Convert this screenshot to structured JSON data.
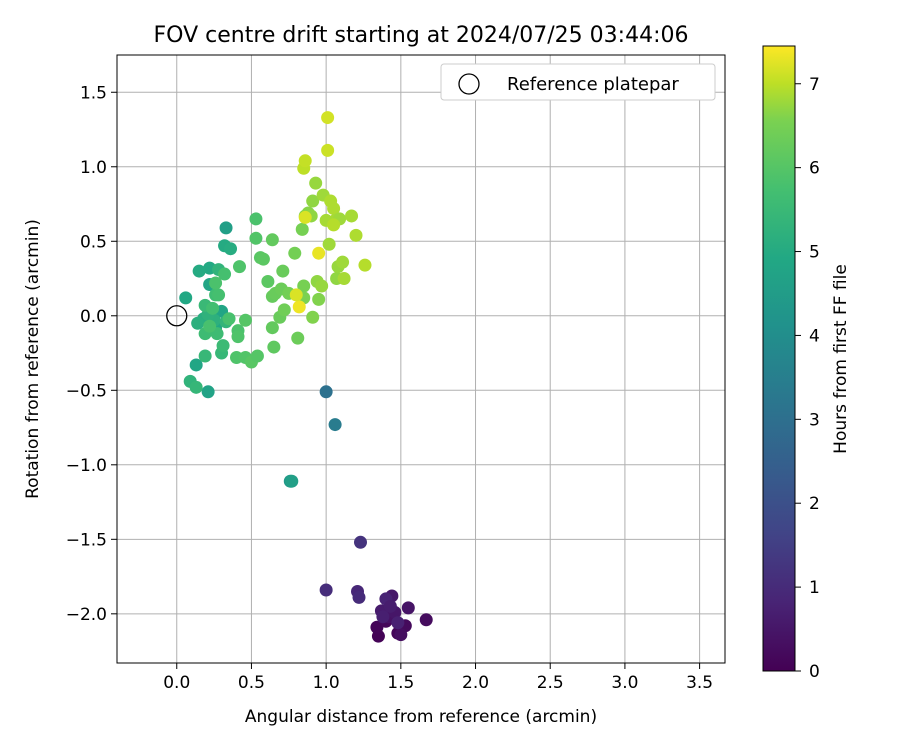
{
  "chart_data": {
    "type": "scatter",
    "title": "FOV centre drift starting at 2024/07/25 03:44:06",
    "xlabel": "Angular distance from reference (arcmin)",
    "ylabel": "Rotation from reference (arcmin)",
    "xlim": [
      -0.4,
      3.67
    ],
    "ylim": [
      -2.33,
      1.75
    ],
    "xticks": [
      0.0,
      0.5,
      1.0,
      1.5,
      2.0,
      2.5,
      3.0,
      3.5
    ],
    "xtick_labels": [
      "0.0",
      "0.5",
      "1.0",
      "1.5",
      "2.0",
      "2.5",
      "3.0",
      "3.5"
    ],
    "yticks": [
      1.5,
      1.0,
      0.5,
      0.0,
      -0.5,
      -1.0,
      -1.5,
      -2.0
    ],
    "ytick_labels": [
      "1.5",
      "1.0",
      "0.5",
      "0.0",
      "−0.5",
      "−1.0",
      "−1.5",
      "−2.0"
    ],
    "grid": true,
    "legend": {
      "position": "top-right",
      "label": "Reference platepar",
      "marker": "open-circle"
    },
    "reference_point": {
      "x": 0.0,
      "y": 0.0
    },
    "colorbar": {
      "label": "Hours from first FF file",
      "range": [
        0,
        7.45
      ],
      "ticks": [
        0,
        1,
        2,
        3,
        4,
        5,
        6,
        7
      ],
      "tick_labels": [
        "0",
        "1",
        "2",
        "3",
        "4",
        "5",
        "6",
        "7"
      ],
      "colormap": "viridis"
    },
    "points": [
      {
        "x": 1.35,
        "y": -2.15,
        "h": 0.05
      },
      {
        "x": 1.48,
        "y": -2.13,
        "h": 0.1
      },
      {
        "x": 1.34,
        "y": -2.09,
        "h": 0.1
      },
      {
        "x": 1.4,
        "y": -2.05,
        "h": 0.15
      },
      {
        "x": 1.53,
        "y": -2.08,
        "h": 0.2
      },
      {
        "x": 1.67,
        "y": -2.04,
        "h": 0.25
      },
      {
        "x": 1.5,
        "y": -2.14,
        "h": 0.3
      },
      {
        "x": 1.42,
        "y": -2.02,
        "h": 0.4
      },
      {
        "x": 1.55,
        "y": -1.96,
        "h": 0.45
      },
      {
        "x": 1.46,
        "y": -1.99,
        "h": 0.5
      },
      {
        "x": 1.44,
        "y": -1.88,
        "h": 0.55
      },
      {
        "x": 1.37,
        "y": -1.98,
        "h": 0.6
      },
      {
        "x": 1.38,
        "y": -2.02,
        "h": 0.7
      },
      {
        "x": 1.48,
        "y": -2.06,
        "h": 0.75
      },
      {
        "x": 1.4,
        "y": -1.9,
        "h": 0.8
      },
      {
        "x": 1.21,
        "y": -1.85,
        "h": 0.9
      },
      {
        "x": 1.22,
        "y": -1.89,
        "h": 1.0
      },
      {
        "x": 1.0,
        "y": -1.84,
        "h": 1.05
      },
      {
        "x": 1.23,
        "y": -1.52,
        "h": 1.2
      },
      {
        "x": 1.43,
        "y": -1.95,
        "h": 0.65
      },
      {
        "x": 1.0,
        "y": -0.51,
        "h": 3.05
      },
      {
        "x": 1.06,
        "y": -0.73,
        "h": 3.4
      },
      {
        "x": 0.76,
        "y": -1.11,
        "h": 4.4
      },
      {
        "x": 0.77,
        "y": -1.11,
        "h": 4.6
      },
      {
        "x": 0.21,
        "y": -0.51,
        "h": 4.75
      },
      {
        "x": 0.33,
        "y": 0.59,
        "h": 4.6
      },
      {
        "x": 0.22,
        "y": 0.21,
        "h": 4.8
      },
      {
        "x": 0.3,
        "y": 0.03,
        "h": 4.8
      },
      {
        "x": 0.13,
        "y": -0.33,
        "h": 4.85
      },
      {
        "x": 0.26,
        "y": -0.08,
        "h": 4.9
      },
      {
        "x": 0.22,
        "y": 0.32,
        "h": 4.95
      },
      {
        "x": 0.15,
        "y": 0.3,
        "h": 5.0
      },
      {
        "x": 0.06,
        "y": 0.12,
        "h": 4.9
      },
      {
        "x": 0.32,
        "y": 0.47,
        "h": 5.0
      },
      {
        "x": 0.36,
        "y": 0.45,
        "h": 5.05
      },
      {
        "x": 0.18,
        "y": -0.02,
        "h": 5.1
      },
      {
        "x": 0.14,
        "y": -0.05,
        "h": 5.15
      },
      {
        "x": 0.25,
        "y": -0.03,
        "h": 5.2
      },
      {
        "x": 0.21,
        "y": 0.01,
        "h": 5.25
      },
      {
        "x": 0.28,
        "y": 0.31,
        "h": 5.3
      },
      {
        "x": 0.33,
        "y": -0.04,
        "h": 5.35
      },
      {
        "x": 0.09,
        "y": -0.44,
        "h": 5.3
      },
      {
        "x": 0.13,
        "y": -0.48,
        "h": 5.4
      },
      {
        "x": 0.19,
        "y": -0.27,
        "h": 5.45
      },
      {
        "x": 0.3,
        "y": -0.25,
        "h": 5.45
      },
      {
        "x": 0.19,
        "y": 0.07,
        "h": 5.5
      },
      {
        "x": 0.31,
        "y": -0.2,
        "h": 5.55
      },
      {
        "x": 0.27,
        "y": -0.12,
        "h": 5.6
      },
      {
        "x": 0.19,
        "y": -0.12,
        "h": 5.6
      },
      {
        "x": 0.26,
        "y": 0.14,
        "h": 5.65
      },
      {
        "x": 0.28,
        "y": 0.14,
        "h": 5.75
      },
      {
        "x": 0.24,
        "y": 0.05,
        "h": 5.7
      },
      {
        "x": 0.32,
        "y": 0.28,
        "h": 5.75
      },
      {
        "x": 0.22,
        "y": -0.07,
        "h": 5.8
      },
      {
        "x": 0.26,
        "y": 0.22,
        "h": 5.85
      },
      {
        "x": 0.35,
        "y": -0.02,
        "h": 5.8
      },
      {
        "x": 0.41,
        "y": -0.1,
        "h": 5.85
      },
      {
        "x": 0.4,
        "y": -0.28,
        "h": 5.9
      },
      {
        "x": 0.46,
        "y": -0.28,
        "h": 5.95
      },
      {
        "x": 0.41,
        "y": -0.14,
        "h": 5.9
      },
      {
        "x": 0.46,
        "y": -0.03,
        "h": 6.0
      },
      {
        "x": 0.5,
        "y": -0.31,
        "h": 6.05
      },
      {
        "x": 0.54,
        "y": -0.27,
        "h": 6.0
      },
      {
        "x": 0.42,
        "y": 0.33,
        "h": 5.9
      },
      {
        "x": 0.53,
        "y": 0.65,
        "h": 5.85
      },
      {
        "x": 0.53,
        "y": 0.52,
        "h": 5.95
      },
      {
        "x": 0.56,
        "y": 0.39,
        "h": 6.05
      },
      {
        "x": 0.58,
        "y": 0.38,
        "h": 6.1
      },
      {
        "x": 0.61,
        "y": 0.23,
        "h": 6.1
      },
      {
        "x": 0.64,
        "y": 0.51,
        "h": 6.2
      },
      {
        "x": 0.64,
        "y": -0.08,
        "h": 6.2
      },
      {
        "x": 0.65,
        "y": -0.21,
        "h": 6.15
      },
      {
        "x": 0.64,
        "y": 0.13,
        "h": 6.25
      },
      {
        "x": 0.66,
        "y": 0.15,
        "h": 6.3
      },
      {
        "x": 0.69,
        "y": -0.01,
        "h": 6.3
      },
      {
        "x": 0.7,
        "y": 0.18,
        "h": 6.35
      },
      {
        "x": 0.71,
        "y": 0.3,
        "h": 6.3
      },
      {
        "x": 0.72,
        "y": 0.04,
        "h": 6.4
      },
      {
        "x": 0.75,
        "y": 0.15,
        "h": 6.45
      },
      {
        "x": 0.79,
        "y": 0.42,
        "h": 6.45
      },
      {
        "x": 0.81,
        "y": -0.15,
        "h": 6.35
      },
      {
        "x": 0.84,
        "y": 0.58,
        "h": 6.5
      },
      {
        "x": 0.85,
        "y": 0.12,
        "h": 6.55
      },
      {
        "x": 0.85,
        "y": 0.2,
        "h": 6.5
      },
      {
        "x": 0.86,
        "y": 0.67,
        "h": 6.6
      },
      {
        "x": 0.88,
        "y": 0.69,
        "h": 6.65
      },
      {
        "x": 0.9,
        "y": 0.67,
        "h": 6.7
      },
      {
        "x": 0.91,
        "y": -0.01,
        "h": 6.6
      },
      {
        "x": 0.91,
        "y": 0.77,
        "h": 6.7
      },
      {
        "x": 0.93,
        "y": 0.89,
        "h": 6.75
      },
      {
        "x": 0.94,
        "y": 0.23,
        "h": 6.7
      },
      {
        "x": 0.95,
        "y": 0.11,
        "h": 6.6
      },
      {
        "x": 0.97,
        "y": 0.2,
        "h": 6.75
      },
      {
        "x": 0.98,
        "y": 0.81,
        "h": 6.8
      },
      {
        "x": 1.0,
        "y": 0.64,
        "h": 6.85
      },
      {
        "x": 1.02,
        "y": 0.48,
        "h": 6.8
      },
      {
        "x": 1.03,
        "y": 0.77,
        "h": 6.9
      },
      {
        "x": 1.05,
        "y": 0.72,
        "h": 6.9
      },
      {
        "x": 1.06,
        "y": 0.64,
        "h": 6.85
      },
      {
        "x": 1.07,
        "y": 0.25,
        "h": 6.7
      },
      {
        "x": 1.08,
        "y": 0.33,
        "h": 6.75
      },
      {
        "x": 1.09,
        "y": 0.65,
        "h": 6.8
      },
      {
        "x": 1.11,
        "y": 0.36,
        "h": 6.8
      },
      {
        "x": 1.12,
        "y": 0.25,
        "h": 6.85
      },
      {
        "x": 1.17,
        "y": 0.67,
        "h": 6.85
      },
      {
        "x": 1.2,
        "y": 0.54,
        "h": 6.9
      },
      {
        "x": 1.26,
        "y": 0.34,
        "h": 6.95
      },
      {
        "x": 1.05,
        "y": 0.61,
        "h": 6.95
      },
      {
        "x": 0.85,
        "y": 0.99,
        "h": 7.0
      },
      {
        "x": 0.86,
        "y": 1.04,
        "h": 7.05
      },
      {
        "x": 1.01,
        "y": 1.11,
        "h": 7.1
      },
      {
        "x": 1.01,
        "y": 1.33,
        "h": 7.15
      },
      {
        "x": 0.86,
        "y": 0.66,
        "h": 7.2
      },
      {
        "x": 0.95,
        "y": 0.42,
        "h": 7.3
      },
      {
        "x": 0.82,
        "y": 0.06,
        "h": 7.35
      },
      {
        "x": 0.8,
        "y": 0.14,
        "h": 7.2
      }
    ]
  }
}
